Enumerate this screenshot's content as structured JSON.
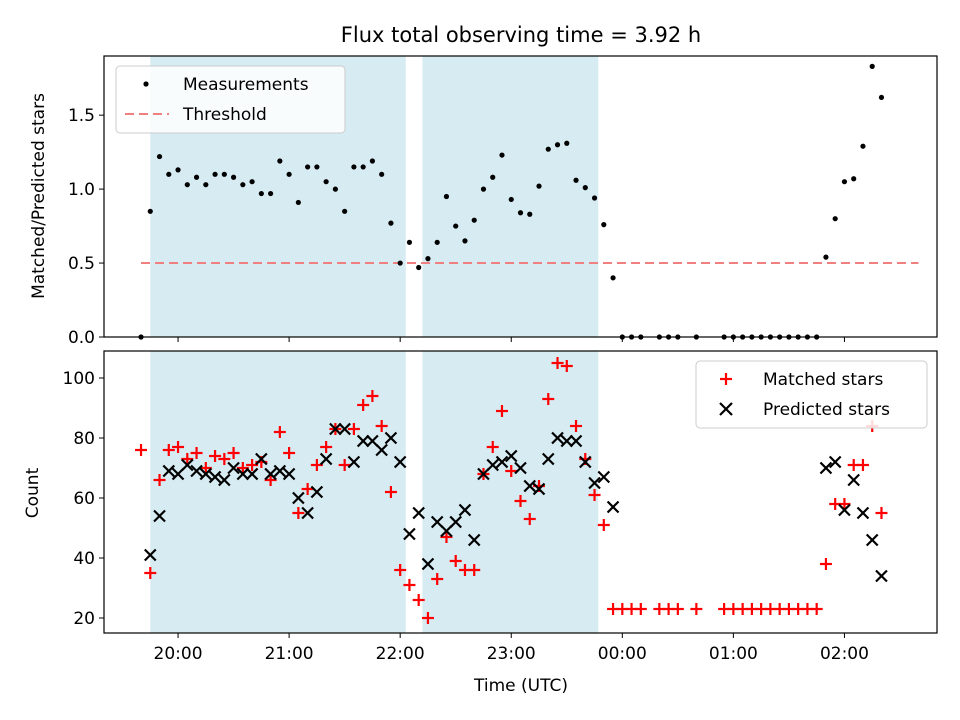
{
  "title": "Flux total observing time = 3.92 h",
  "chart_data": [
    {
      "type": "scatter",
      "panel": "top",
      "ylabel": "Matched/Predicted stars",
      "ylim": [
        0,
        1.9
      ],
      "yticks": [
        "0.0",
        "0.5",
        "1.0",
        "1.5"
      ],
      "ytick_values": [
        0,
        0.5,
        1.0,
        1.5
      ],
      "xlim": [
        "19:20",
        "02:50"
      ],
      "legend": {
        "position": "top-left",
        "entries": [
          {
            "name": "Measurements",
            "marker": "dot",
            "color": "#000000"
          },
          {
            "name": "Threshold",
            "marker": "dashed-line",
            "color": "#f08080"
          }
        ]
      },
      "threshold": {
        "value": 0.5,
        "x_range": [
          "19:40",
          "02:40"
        ]
      },
      "shaded_intervals": [
        [
          "19:45",
          "22:03"
        ],
        [
          "22:12",
          "23:47"
        ]
      ],
      "series": [
        {
          "name": "Measurements",
          "points": [
            [
              "19:40",
              0.0
            ],
            [
              "19:45",
              0.85
            ],
            [
              "19:50",
              1.22
            ],
            [
              "19:55",
              1.1
            ],
            [
              "20:00",
              1.13
            ],
            [
              "20:05",
              1.03
            ],
            [
              "20:10",
              1.08
            ],
            [
              "20:15",
              1.03
            ],
            [
              "20:20",
              1.1
            ],
            [
              "20:25",
              1.1
            ],
            [
              "20:30",
              1.08
            ],
            [
              "20:35",
              1.03
            ],
            [
              "20:40",
              1.05
            ],
            [
              "20:45",
              0.97
            ],
            [
              "20:50",
              0.97
            ],
            [
              "20:55",
              1.19
            ],
            [
              "21:00",
              1.1
            ],
            [
              "21:05",
              0.91
            ],
            [
              "21:10",
              1.15
            ],
            [
              "21:15",
              1.15
            ],
            [
              "21:20",
              1.05
            ],
            [
              "21:25",
              1.0
            ],
            [
              "21:30",
              0.85
            ],
            [
              "21:35",
              1.15
            ],
            [
              "21:40",
              1.15
            ],
            [
              "21:45",
              1.19
            ],
            [
              "21:50",
              1.1
            ],
            [
              "21:55",
              0.77
            ],
            [
              "22:00",
              0.5
            ],
            [
              "22:05",
              0.64
            ],
            [
              "22:10",
              0.47
            ],
            [
              "22:15",
              0.53
            ],
            [
              "22:20",
              0.64
            ],
            [
              "22:25",
              0.95
            ],
            [
              "22:30",
              0.75
            ],
            [
              "22:35",
              0.65
            ],
            [
              "22:40",
              0.79
            ],
            [
              "22:45",
              1.0
            ],
            [
              "22:50",
              1.08
            ],
            [
              "22:55",
              1.23
            ],
            [
              "23:00",
              0.93
            ],
            [
              "23:05",
              0.84
            ],
            [
              "23:10",
              0.83
            ],
            [
              "23:15",
              1.02
            ],
            [
              "23:20",
              1.27
            ],
            [
              "23:25",
              1.3
            ],
            [
              "23:30",
              1.31
            ],
            [
              "23:35",
              1.06
            ],
            [
              "23:40",
              1.01
            ],
            [
              "23:45",
              0.94
            ],
            [
              "23:50",
              0.76
            ],
            [
              "23:55",
              0.4
            ],
            [
              "00:00",
              0.0
            ],
            [
              "00:05",
              0.0
            ],
            [
              "00:10",
              0.0
            ],
            [
              "00:20",
              0.0
            ],
            [
              "00:25",
              0.0
            ],
            [
              "00:30",
              0.0
            ],
            [
              "00:40",
              0.0
            ],
            [
              "00:55",
              0.0
            ],
            [
              "01:00",
              0.0
            ],
            [
              "01:05",
              0.0
            ],
            [
              "01:10",
              0.0
            ],
            [
              "01:15",
              0.0
            ],
            [
              "01:20",
              0.0
            ],
            [
              "01:25",
              0.0
            ],
            [
              "01:30",
              0.0
            ],
            [
              "01:35",
              0.0
            ],
            [
              "01:40",
              0.0
            ],
            [
              "01:45",
              0.0
            ],
            [
              "01:50",
              0.54
            ],
            [
              "01:55",
              0.8
            ],
            [
              "02:00",
              1.05
            ],
            [
              "02:05",
              1.07
            ],
            [
              "02:10",
              1.29
            ],
            [
              "02:15",
              1.83
            ],
            [
              "02:20",
              1.62
            ]
          ]
        }
      ]
    },
    {
      "type": "scatter",
      "panel": "bottom",
      "xlabel": "Time (UTC)",
      "ylabel": "Count",
      "ylim": [
        15,
        109
      ],
      "yticks": [
        "20",
        "40",
        "60",
        "80",
        "100"
      ],
      "ytick_values": [
        20,
        40,
        60,
        80,
        100
      ],
      "xlim": [
        "19:20",
        "02:50"
      ],
      "xticks": [
        "20:00",
        "21:00",
        "22:00",
        "23:00",
        "00:00",
        "01:00",
        "02:00"
      ],
      "legend": {
        "position": "top-right",
        "entries": [
          {
            "name": "Matched stars",
            "marker": "plus",
            "color": "#ff0000"
          },
          {
            "name": "Predicted stars",
            "marker": "x",
            "color": "#000000"
          }
        ]
      },
      "shaded_intervals": [
        [
          "19:45",
          "22:03"
        ],
        [
          "22:12",
          "23:47"
        ]
      ],
      "series": [
        {
          "name": "Matched stars",
          "points": [
            [
              "19:40",
              76
            ],
            [
              "19:45",
              35
            ],
            [
              "19:50",
              66
            ],
            [
              "19:55",
              76
            ],
            [
              "20:00",
              77
            ],
            [
              "20:05",
              73
            ],
            [
              "20:10",
              75
            ],
            [
              "20:15",
              70
            ],
            [
              "20:20",
              74
            ],
            [
              "20:25",
              73
            ],
            [
              "20:30",
              75
            ],
            [
              "20:35",
              70
            ],
            [
              "20:40",
              71
            ],
            [
              "20:45",
              72
            ],
            [
              "20:50",
              66
            ],
            [
              "20:55",
              82
            ],
            [
              "21:00",
              75
            ],
            [
              "21:05",
              55
            ],
            [
              "21:10",
              63
            ],
            [
              "21:15",
              71
            ],
            [
              "21:20",
              77
            ],
            [
              "21:25",
              83
            ],
            [
              "21:30",
              71
            ],
            [
              "21:35",
              83
            ],
            [
              "21:40",
              91
            ],
            [
              "21:45",
              94
            ],
            [
              "21:50",
              84
            ],
            [
              "21:55",
              62
            ],
            [
              "22:00",
              36
            ],
            [
              "22:05",
              31
            ],
            [
              "22:10",
              26
            ],
            [
              "22:15",
              20
            ],
            [
              "22:20",
              33
            ],
            [
              "22:25",
              47
            ],
            [
              "22:30",
              39
            ],
            [
              "22:35",
              36
            ],
            [
              "22:40",
              36
            ],
            [
              "22:45",
              68
            ],
            [
              "22:50",
              77
            ],
            [
              "22:55",
              89
            ],
            [
              "23:00",
              69
            ],
            [
              "23:05",
              59
            ],
            [
              "23:10",
              53
            ],
            [
              "23:15",
              64
            ],
            [
              "23:20",
              93
            ],
            [
              "23:25",
              105
            ],
            [
              "23:30",
              104
            ],
            [
              "23:35",
              84
            ],
            [
              "23:40",
              73
            ],
            [
              "23:45",
              61
            ],
            [
              "23:50",
              51
            ],
            [
              "23:55",
              23
            ],
            [
              "00:00",
              23
            ],
            [
              "00:05",
              23
            ],
            [
              "00:10",
              23
            ],
            [
              "00:20",
              23
            ],
            [
              "00:25",
              23
            ],
            [
              "00:30",
              23
            ],
            [
              "00:40",
              23
            ],
            [
              "00:55",
              23
            ],
            [
              "01:00",
              23
            ],
            [
              "01:05",
              23
            ],
            [
              "01:10",
              23
            ],
            [
              "01:15",
              23
            ],
            [
              "01:20",
              23
            ],
            [
              "01:25",
              23
            ],
            [
              "01:30",
              23
            ],
            [
              "01:35",
              23
            ],
            [
              "01:40",
              23
            ],
            [
              "01:45",
              23
            ],
            [
              "01:50",
              38
            ],
            [
              "01:55",
              58
            ],
            [
              "02:00",
              58
            ],
            [
              "02:05",
              71
            ],
            [
              "02:10",
              71
            ],
            [
              "02:15",
              84
            ],
            [
              "02:20",
              55
            ]
          ]
        },
        {
          "name": "Predicted stars",
          "points": [
            [
              "19:45",
              41
            ],
            [
              "19:50",
              54
            ],
            [
              "19:55",
              69
            ],
            [
              "20:00",
              68
            ],
            [
              "20:05",
              71
            ],
            [
              "20:10",
              69
            ],
            [
              "20:15",
              68
            ],
            [
              "20:20",
              67
            ],
            [
              "20:25",
              66
            ],
            [
              "20:30",
              70
            ],
            [
              "20:35",
              68
            ],
            [
              "20:40",
              68
            ],
            [
              "20:45",
              73
            ],
            [
              "20:50",
              68
            ],
            [
              "20:55",
              69
            ],
            [
              "21:00",
              68
            ],
            [
              "21:05",
              60
            ],
            [
              "21:10",
              55
            ],
            [
              "21:15",
              62
            ],
            [
              "21:20",
              73
            ],
            [
              "21:25",
              83
            ],
            [
              "21:30",
              83
            ],
            [
              "21:35",
              72
            ],
            [
              "21:40",
              79
            ],
            [
              "21:45",
              79
            ],
            [
              "21:50",
              76
            ],
            [
              "21:55",
              80
            ],
            [
              "22:00",
              72
            ],
            [
              "22:05",
              48
            ],
            [
              "22:10",
              55
            ],
            [
              "22:15",
              38
            ],
            [
              "22:20",
              52
            ],
            [
              "22:25",
              49
            ],
            [
              "22:30",
              52
            ],
            [
              "22:35",
              56
            ],
            [
              "22:40",
              46
            ],
            [
              "22:45",
              68
            ],
            [
              "22:50",
              71
            ],
            [
              "22:55",
              72
            ],
            [
              "23:00",
              74
            ],
            [
              "23:05",
              70
            ],
            [
              "23:10",
              64
            ],
            [
              "23:15",
              63
            ],
            [
              "23:20",
              73
            ],
            [
              "23:25",
              80
            ],
            [
              "23:30",
              79
            ],
            [
              "23:35",
              79
            ],
            [
              "23:40",
              72
            ],
            [
              "23:45",
              65
            ],
            [
              "23:50",
              67
            ],
            [
              "23:55",
              57
            ],
            [
              "01:50",
              70
            ],
            [
              "01:55",
              72
            ],
            [
              "02:00",
              56
            ],
            [
              "02:05",
              66
            ],
            [
              "02:10",
              55
            ],
            [
              "02:15",
              46
            ],
            [
              "02:20",
              34
            ]
          ]
        }
      ]
    }
  ]
}
